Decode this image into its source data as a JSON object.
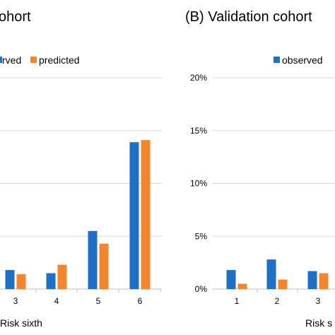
{
  "colors": {
    "observed": "#1f6fc6",
    "predicted": "#f4852f",
    "grid": "#d9d9d9",
    "axis": "#bfbfbf"
  },
  "chart_data": [
    {
      "type": "bar",
      "title": "ohort",
      "xlabel": "Risk sixth",
      "legend": [
        "rved",
        "predicted"
      ],
      "legend_position": "top",
      "categories": [
        "3",
        "4",
        "5",
        "6"
      ],
      "ylim": [
        0,
        20
      ],
      "grid": true,
      "series": [
        {
          "name": "observed",
          "values": [
            1.8,
            1.5,
            5.5,
            13.9
          ]
        },
        {
          "name": "predicted",
          "values": [
            1.4,
            2.3,
            4.3,
            14.1
          ]
        }
      ]
    },
    {
      "type": "bar",
      "title": "(B) Validation cohort",
      "xlabel": "Risk s",
      "legend": [
        "observed"
      ],
      "legend_position": "top",
      "categories": [
        "1",
        "2",
        "3"
      ],
      "yticks": [
        "0%",
        "5%",
        "10%",
        "15%",
        "20%"
      ],
      "ylim": [
        0,
        20
      ],
      "grid": true,
      "series": [
        {
          "name": "observed",
          "values": [
            1.8,
            2.8,
            1.7
          ]
        },
        {
          "name": "predicted",
          "values": [
            0.5,
            0.9,
            1.5
          ]
        }
      ]
    }
  ]
}
